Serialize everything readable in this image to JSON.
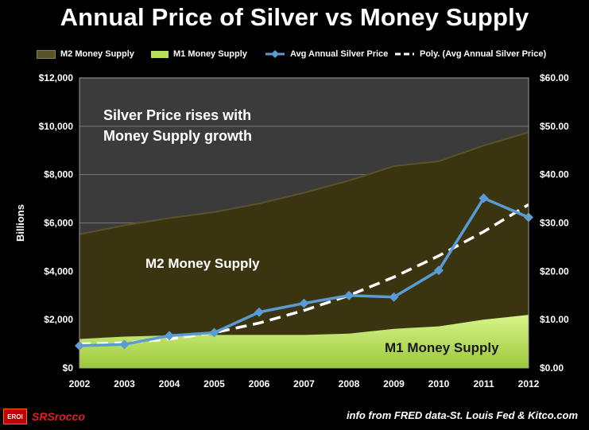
{
  "title": "Annual Price of Silver vs Money Supply",
  "legend": [
    {
      "label": "M2 Money Supply",
      "kind": "area",
      "color": "#5a5228"
    },
    {
      "label": "M1 Money Supply",
      "kind": "area",
      "color": "#b6e05a"
    },
    {
      "label": "Avg Annual Silver Price",
      "kind": "line-marker",
      "color": "#5b9bd5"
    },
    {
      "label": "Poly. (Avg Annual Silver Price)",
      "kind": "dashed",
      "color": "#ffffff"
    }
  ],
  "chart_data": {
    "type": "area",
    "categories": [
      "2002",
      "2003",
      "2004",
      "2005",
      "2006",
      "2007",
      "2008",
      "2009",
      "2010",
      "2011",
      "2012"
    ],
    "y_left": {
      "label": "Billions",
      "range": [
        0,
        12000
      ],
      "ticks": [
        "$0",
        "$2,000",
        "$4,000",
        "$6,000",
        "$8,000",
        "$10,000",
        "$12,000"
      ]
    },
    "y_right": {
      "range": [
        0,
        60
      ],
      "ticks": [
        "$0.00",
        "$10.00",
        "$20.00",
        "$30.00",
        "$40.00",
        "$50.00",
        "$60.00"
      ]
    },
    "grid": true,
    "series": [
      {
        "name": "M2 Money Supply",
        "type": "area",
        "axis": "left",
        "color": "#3a3510",
        "values": [
          5530,
          5900,
          6200,
          6450,
          6800,
          7250,
          7750,
          8350,
          8550,
          9200,
          9750
        ]
      },
      {
        "name": "M1 Money Supply",
        "type": "area",
        "axis": "left",
        "color": "#c9ef74",
        "values": [
          1200,
          1300,
          1350,
          1370,
          1370,
          1370,
          1420,
          1620,
          1720,
          2000,
          2200
        ]
      },
      {
        "name": "Avg Annual Silver Price",
        "type": "line",
        "axis": "right",
        "color": "#5b9bd5",
        "values": [
          4.6,
          4.88,
          6.67,
          7.31,
          11.55,
          13.38,
          14.99,
          14.67,
          20.19,
          35.12,
          31.15
        ]
      },
      {
        "name": "Poly. (Avg Annual Silver Price)",
        "type": "line",
        "axis": "right",
        "color": "#ffffff",
        "dash": true,
        "values": [
          5.0,
          5.2,
          6.0,
          7.3,
          9.3,
          11.9,
          15.0,
          18.8,
          23.2,
          28.2,
          33.8
        ]
      }
    ]
  },
  "annotations": {
    "headline_line1": "Silver Price rises with",
    "headline_line2": "Money Supply growth",
    "m2_label": "M2 Money Supply",
    "m1_label": "M1 Money Supply"
  },
  "footer": {
    "logo_badge": "EROI",
    "logo_text": "SRSrocco",
    "source": "info from FRED data-St. Louis Fed & Kitco.com"
  }
}
